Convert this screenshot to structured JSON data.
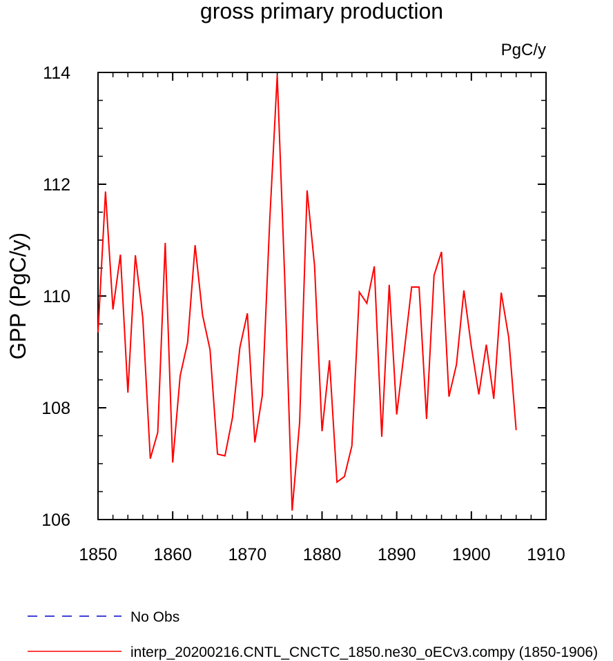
{
  "chart_data": {
    "type": "line",
    "title": "gross primary production",
    "units": "PgC/y",
    "xlabel": "",
    "ylabel": "GPP  (PgC/y)",
    "xlim": [
      1850,
      1910
    ],
    "ylim": [
      106,
      114
    ],
    "xticks": [
      1850,
      1860,
      1870,
      1880,
      1890,
      1900,
      1910
    ],
    "yticks": [
      106,
      108,
      110,
      112,
      114
    ],
    "x_minor_step": 2,
    "y_minor_step": 0.5,
    "grid": false,
    "legend_position": "bottom-left",
    "series": [
      {
        "name": "No Obs",
        "color": "#0000cc",
        "dash": "dashed",
        "x": [],
        "values": []
      },
      {
        "name": "interp_20200216.CNTL_CNCTC_1850.ne30_oECv3.compy (1850-1906)",
        "color": "#ff0000",
        "dash": "solid",
        "x": [
          1850,
          1851,
          1852,
          1853,
          1854,
          1855,
          1856,
          1857,
          1858,
          1859,
          1860,
          1861,
          1862,
          1863,
          1864,
          1865,
          1866,
          1867,
          1868,
          1869,
          1870,
          1871,
          1872,
          1873,
          1874,
          1875,
          1876,
          1877,
          1878,
          1879,
          1880,
          1881,
          1882,
          1883,
          1884,
          1885,
          1886,
          1887,
          1888,
          1889,
          1890,
          1891,
          1892,
          1893,
          1894,
          1895,
          1896,
          1897,
          1898,
          1899,
          1900,
          1901,
          1902,
          1903,
          1904,
          1905,
          1906
        ],
        "values": [
          109.35,
          111.87,
          109.76,
          110.74,
          108.27,
          110.73,
          109.6,
          107.09,
          107.56,
          110.95,
          107.02,
          108.57,
          109.17,
          110.91,
          109.66,
          109.04,
          107.17,
          107.14,
          107.82,
          109.08,
          109.69,
          107.38,
          108.22,
          111.36,
          113.95,
          110.33,
          106.16,
          107.74,
          111.89,
          110.54,
          107.58,
          108.85,
          106.67,
          106.77,
          107.32,
          110.07,
          109.87,
          110.53,
          107.48,
          110.2,
          107.88,
          109.0,
          110.16,
          110.16,
          107.8,
          110.37,
          110.79,
          108.2,
          108.77,
          110.1,
          109.09,
          108.24,
          109.13,
          108.16,
          110.06,
          109.26,
          107.6
        ]
      }
    ]
  }
}
